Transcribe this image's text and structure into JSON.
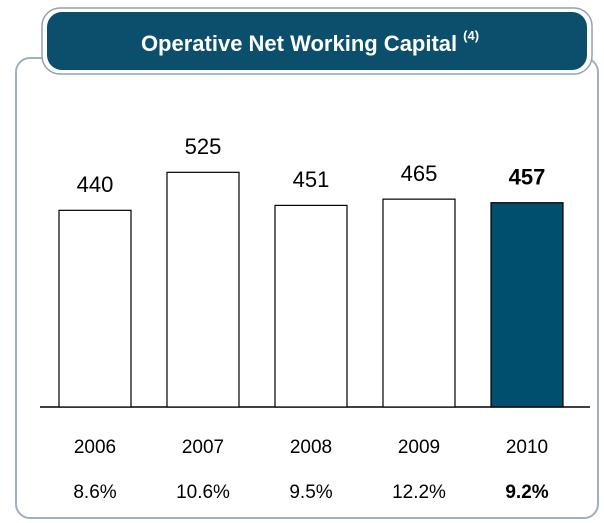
{
  "chart_data": {
    "type": "bar",
    "title": "Operative Net Working Capital",
    "title_note": "(4)",
    "categories": [
      "2006",
      "2007",
      "2008",
      "2009",
      "2010"
    ],
    "values": [
      440,
      525,
      451,
      465,
      457
    ],
    "colors": [
      "#ffffff",
      "#ffffff",
      "#ffffff",
      "#ffffff",
      "#004f6e"
    ],
    "ratios": [
      "8.6%",
      "10.6%",
      "9.5%",
      "12.2%",
      "9.2%"
    ]
  }
}
